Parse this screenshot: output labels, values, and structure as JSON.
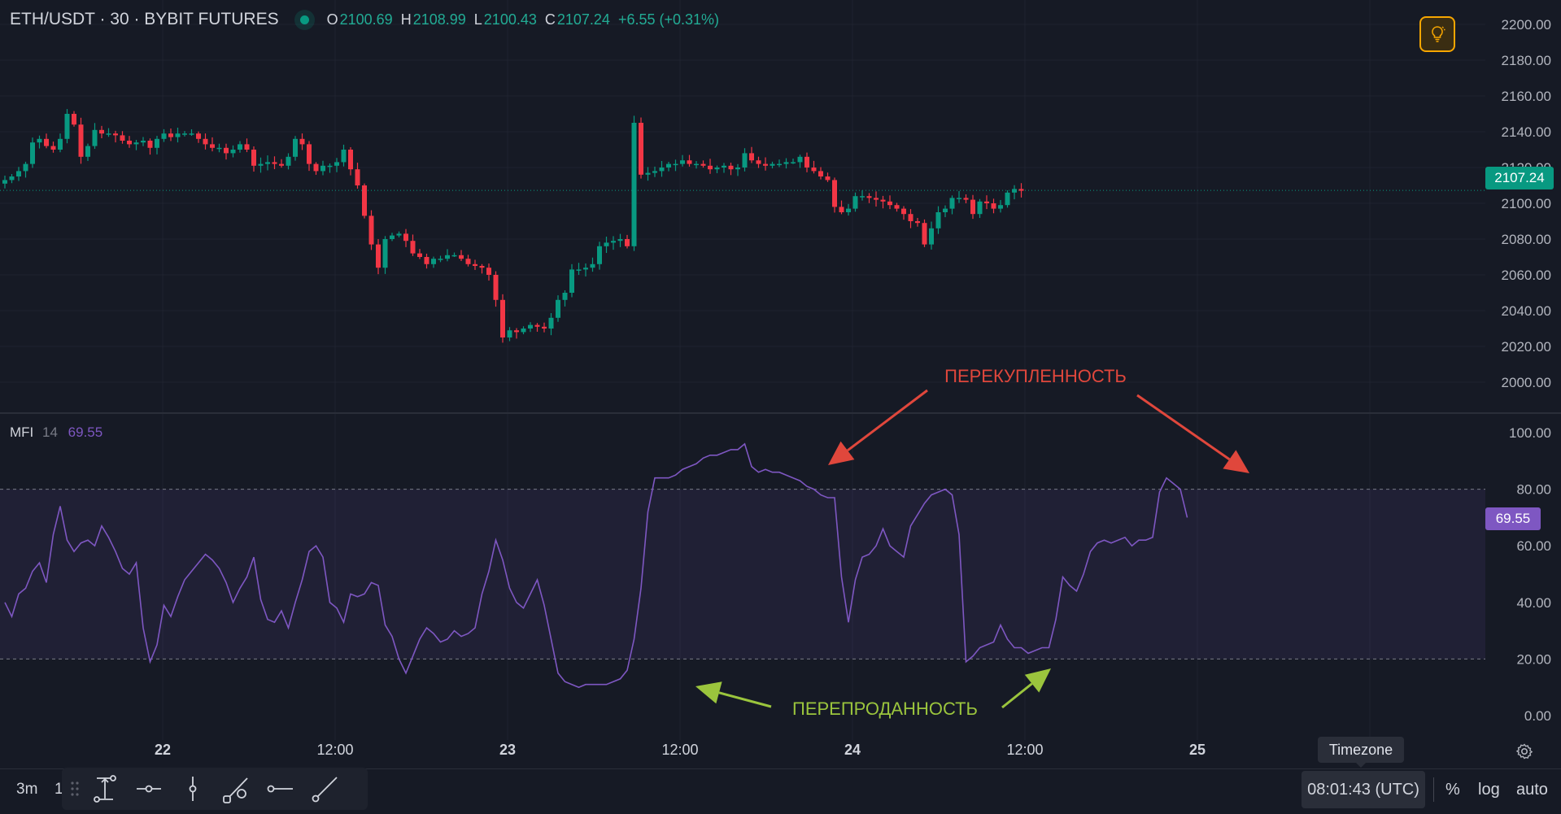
{
  "header": {
    "symbol": "ETH/USDT · 30 · BYBIT FUTURES",
    "open_label": "O",
    "open": "2100.69",
    "high_label": "H",
    "high": "2108.99",
    "low_label": "L",
    "low": "2100.43",
    "close_label": "C",
    "close": "2107.24",
    "change": "+6.55 (+0.31%)"
  },
  "mfi_legend": {
    "name": "MFI",
    "period": "14",
    "value": "69.55"
  },
  "price_badge": "2107.24",
  "mfi_badge": "69.55",
  "annotations": {
    "overbought": "ПЕРЕКУПЛЕННОСТЬ",
    "oversold": "ПЕРЕПРОДАННОСТЬ"
  },
  "bottom": {
    "timeframe": "3m",
    "timeframe_next": "1",
    "timezone_tooltip": "Timezone",
    "clock": "08:01:43 (UTC)",
    "percent_label": "%",
    "log_label": "log",
    "auto_label": "auto"
  },
  "tools": [
    "price-range-tool-icon",
    "horizontal-ray-icon",
    "vertical-line-icon",
    "trend-line-icon",
    "horizontal-line-icon",
    "ray-line-icon"
  ],
  "colors": {
    "bg": "#161a25",
    "up": "#089981",
    "down": "#f23645",
    "mfi": "#7e57c2",
    "overbought_arrow": "#e0473c",
    "oversold_arrow": "#9bc53d",
    "accent": "#f7a600"
  },
  "chart_data": [
    {
      "type": "candlestick",
      "title": "ETH/USDT · 30 · BYBIT FUTURES",
      "y_ticks": [
        2000,
        2020,
        2040,
        2060,
        2080,
        2100,
        2120,
        2140,
        2160,
        2180,
        2200
      ],
      "ylim": [
        1980,
        2200
      ],
      "x_ticks": [
        "22",
        "12:00",
        "23",
        "12:00",
        "24",
        "12:00",
        "25"
      ],
      "last_price": 2107.24,
      "ohlc_close_path": [
        2113,
        2115,
        2118,
        2122,
        2134,
        2136,
        2132,
        2130,
        2136,
        2150,
        2144,
        2126,
        2132,
        2141,
        2139,
        2139,
        2138,
        2135,
        2133,
        2134,
        2135,
        2131,
        2136,
        2139,
        2137,
        2139,
        2139,
        2139,
        2136,
        2133,
        2131,
        2131,
        2128,
        2130,
        2133,
        2130,
        2121,
        2122,
        2123,
        2122,
        2121,
        2126,
        2136,
        2133,
        2122,
        2118,
        2121,
        2121,
        2123,
        2130,
        2119,
        2110,
        2093,
        2077,
        2064,
        2080,
        2082,
        2083,
        2079,
        2072,
        2070,
        2066,
        2069,
        2069,
        2071,
        2071,
        2069,
        2066,
        2065,
        2064,
        2060,
        2046,
        2025,
        2029,
        2028,
        2030,
        2032,
        2031,
        2030,
        2036,
        2046,
        2050,
        2063,
        2063,
        2064,
        2066,
        2076,
        2078,
        2079,
        2080,
        2076,
        2145,
        2116,
        2117,
        2118,
        2120,
        2122,
        2122,
        2124,
        2122,
        2122,
        2121,
        2119,
        2120,
        2121,
        2119,
        2120,
        2128,
        2124,
        2122,
        2121,
        2122,
        2122,
        2123,
        2123,
        2126,
        2120,
        2118,
        2115,
        2113,
        2098,
        2095,
        2097,
        2104,
        2104,
        2103,
        2102,
        2101,
        2099,
        2097,
        2094,
        2090,
        2089,
        2077,
        2086,
        2095,
        2097,
        2103,
        2103,
        2102,
        2094,
        2101,
        2100,
        2097,
        2099,
        2106,
        2108,
        2107
      ],
      "high_low_extremes": {
        "high": 2150,
        "low": 2008
      },
      "series": [
        {
          "name": "ETH/USDT",
          "values": "ohlc_close_path"
        }
      ]
    },
    {
      "type": "line",
      "title": "MFI 14",
      "y_ticks": [
        0,
        20,
        40,
        60,
        80,
        100
      ],
      "ylim": [
        -3,
        103
      ],
      "band": [
        20,
        80
      ],
      "x_ticks": [
        "22",
        "12:00",
        "23",
        "12:00",
        "24",
        "12:00",
        "25"
      ],
      "series": [
        {
          "name": "MFI",
          "values": [
            40,
            35,
            43,
            45,
            51,
            54,
            47,
            64,
            74,
            62,
            58,
            61,
            62,
            60,
            67,
            63,
            58,
            52,
            50,
            54,
            31,
            19,
            25,
            39,
            35,
            42,
            48,
            51,
            54,
            57,
            55,
            52,
            47,
            40,
            45,
            49,
            56,
            41,
            34,
            33,
            37,
            31,
            40,
            48,
            58,
            60,
            56,
            40,
            38,
            33,
            43,
            42,
            43,
            47,
            46,
            32,
            28,
            20,
            15,
            21,
            27,
            31,
            29,
            26,
            27,
            30,
            28,
            29,
            31,
            43,
            51,
            62,
            55,
            45,
            40,
            38,
            43,
            48,
            39,
            27,
            15,
            12,
            11,
            10,
            11,
            11,
            11,
            11,
            12,
            13,
            16,
            27,
            45,
            72,
            84,
            84,
            84,
            85,
            87,
            88,
            89,
            91,
            92,
            92,
            93,
            94,
            94,
            96,
            88,
            86,
            87,
            86,
            86,
            85,
            84,
            83,
            81,
            80,
            78,
            77,
            77,
            49,
            33,
            48,
            56,
            57,
            60,
            66,
            60,
            58,
            56,
            67,
            71,
            75,
            78,
            79,
            80,
            78,
            64,
            19,
            21,
            24,
            25,
            26,
            32,
            27,
            24,
            24,
            22,
            23,
            24,
            24,
            34,
            49,
            46,
            44,
            50,
            58,
            61,
            62,
            61,
            62,
            63,
            60,
            62,
            62,
            63,
            79,
            84,
            82,
            80,
            70
          ]
        }
      ]
    }
  ]
}
